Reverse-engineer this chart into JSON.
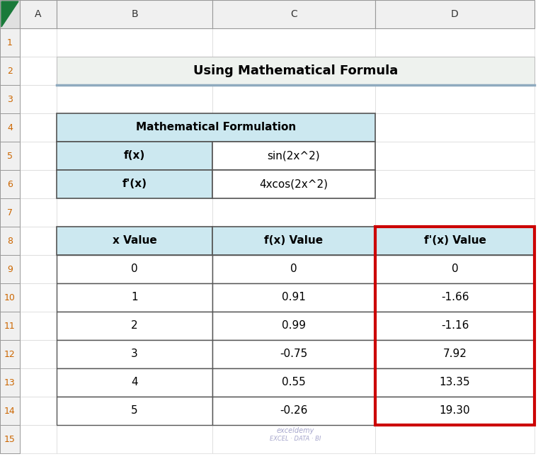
{
  "title": "Using Mathematical Formula",
  "title_bg": "#eef2ee",
  "title_border_bottom": "#8faabf",
  "col_labels": [
    "A",
    "B",
    "C",
    "D"
  ],
  "formula_table_header": "Mathematical Formulation",
  "formula_rows": [
    [
      "f(x)",
      "sin(2x^2)"
    ],
    [
      "f'(x)",
      "4xcos(2x^2)"
    ]
  ],
  "data_headers": [
    "x Value",
    "f(x) Value",
    "f'(x) Value"
  ],
  "data_rows": [
    [
      "0",
      "0",
      "0"
    ],
    [
      "1",
      "0.91",
      "-1.66"
    ],
    [
      "2",
      "0.99",
      "-1.16"
    ],
    [
      "3",
      "-0.75",
      "7.92"
    ],
    [
      "4",
      "0.55",
      "13.35"
    ],
    [
      "5",
      "-0.26",
      "19.30"
    ]
  ],
  "tbl_header_bg": "#cce8f0",
  "tbl_cell_bg": "#ffffff",
  "red_border_color": "#cc0000",
  "col_header_bg": "#f0f0f0",
  "row_num_bg": "#f0f0f0",
  "col_header_text": "#cc6600",
  "grid_line_color": "#b0b0b0",
  "table_border_color": "#555555",
  "watermark_line1": "exceldemy",
  "watermark_line2": "EXCEL · DATA · BI"
}
